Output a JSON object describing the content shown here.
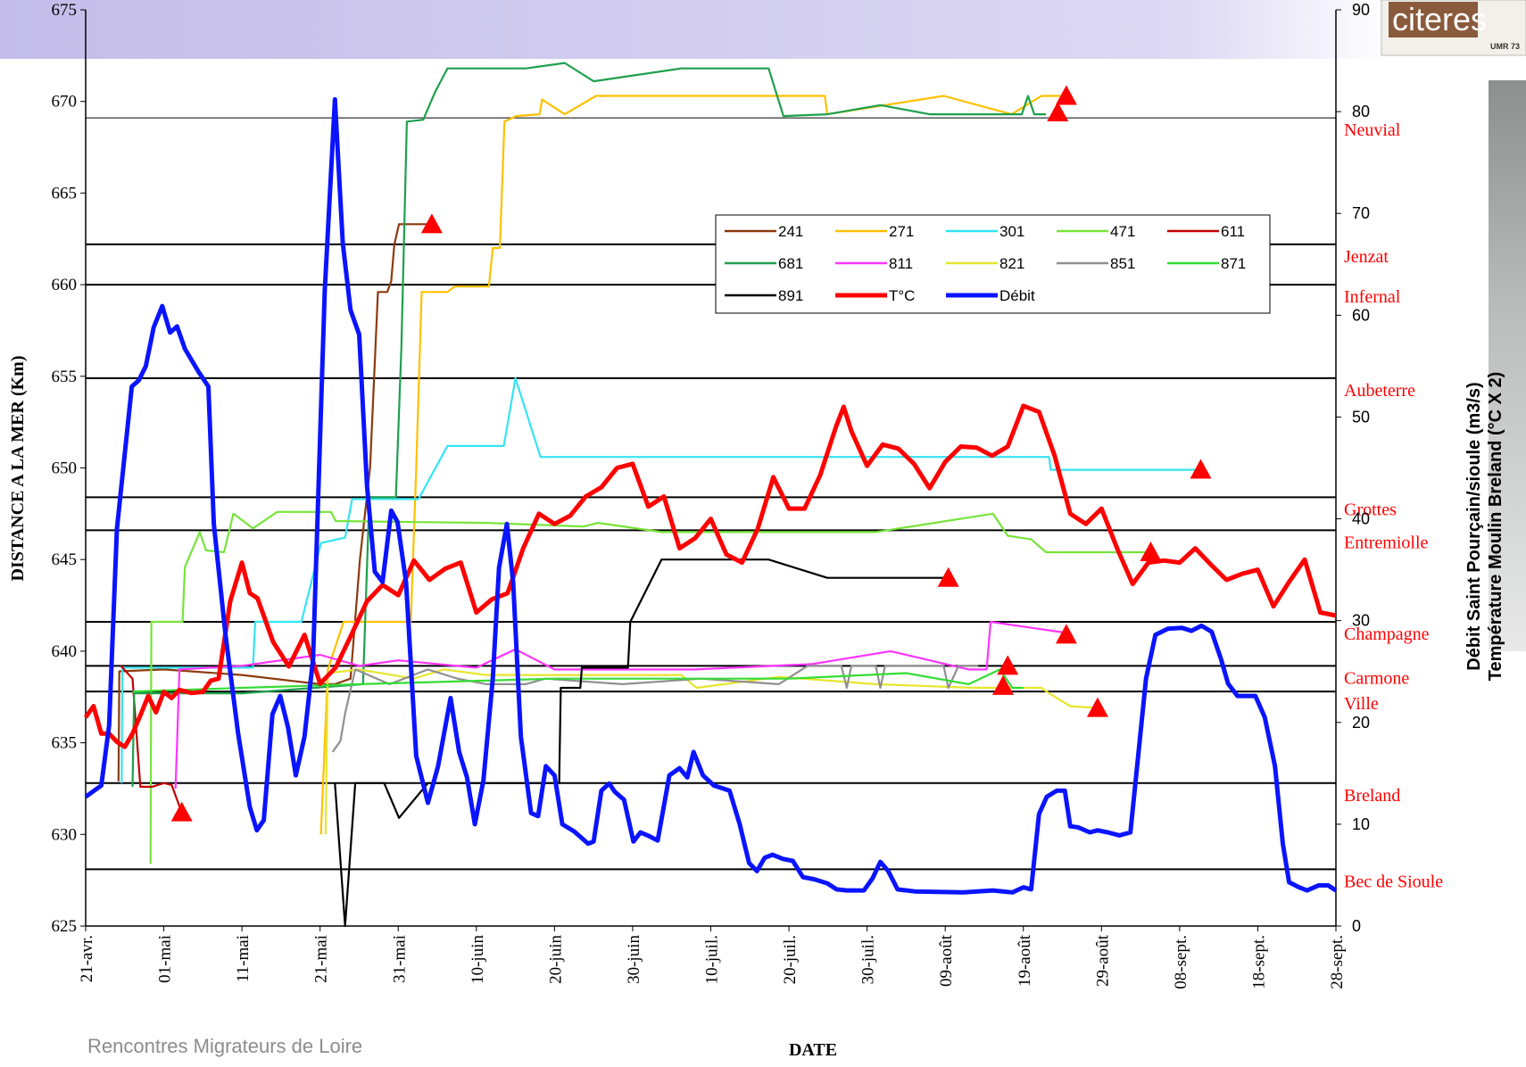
{
  "header": {
    "footer": "Rencontres Migrateurs de Loire",
    "logo": "citeres",
    "logo_sub": "UMR 73"
  },
  "chart_data": {
    "type": "line",
    "x_label": "DATE",
    "y_label": "DISTANCE A LA MER (Km)",
    "y2_label": [
      "Débit Saint Pourçain/sioule (m3/s)",
      "Température Moulin Breland (°C X 2)"
    ],
    "xlim": [
      0,
      160
    ],
    "xticks": [
      {
        "value": 0,
        "label": "21-avr."
      },
      {
        "value": 10,
        "label": "01-mai"
      },
      {
        "value": 20,
        "label": "11-mai"
      },
      {
        "value": 30,
        "label": "21-mai"
      },
      {
        "value": 40,
        "label": "31-mai"
      },
      {
        "value": 50,
        "label": "10-juin"
      },
      {
        "value": 60,
        "label": "20-juin"
      },
      {
        "value": 70,
        "label": "30-juin"
      },
      {
        "value": 80,
        "label": "10-juil."
      },
      {
        "value": 90,
        "label": "20-juil."
      },
      {
        "value": 100,
        "label": "30-juil."
      },
      {
        "value": 110,
        "label": "09-août"
      },
      {
        "value": 120,
        "label": "19-août"
      },
      {
        "value": 130,
        "label": "29-août"
      },
      {
        "value": 140,
        "label": "08-sept."
      },
      {
        "value": 150,
        "label": "18-sept."
      },
      {
        "value": 160,
        "label": "28-sept."
      }
    ],
    "ylim": [
      625,
      675
    ],
    "yticks": [
      625,
      630,
      635,
      640,
      645,
      650,
      655,
      660,
      665,
      670,
      675
    ],
    "y2lim": [
      0,
      90
    ],
    "y2ticks": [
      0,
      10,
      20,
      30,
      40,
      50,
      60,
      70,
      80,
      90
    ],
    "reference_lines": [
      {
        "label": "Neuvial",
        "value": 669.1
      },
      {
        "label": "Jenzat",
        "value": 662.2
      },
      {
        "label": "Infernal",
        "value": 660
      },
      {
        "label": "Aubeterre",
        "value": 654.9
      },
      {
        "label": "Grottes",
        "value": 648.4
      },
      {
        "label": "Entremiolle",
        "value": 646.6
      },
      {
        "label": "Champagne",
        "value": 641.6
      },
      {
        "label": "Carmone",
        "value": 639.2
      },
      {
        "label": "Ville",
        "value": 637.8
      },
      {
        "label": "Breland",
        "value": 632.8
      },
      {
        "label": "Bec de Sioule",
        "value": 628.1
      }
    ],
    "series": [
      {
        "name": "241",
        "color": "#8b3a0e",
        "x": [
          4.2,
          4.3,
          10,
          20,
          30,
          31.9,
          33.9,
          35.1,
          36.4,
          37.4,
          38.6,
          39.1,
          39.5,
          40.1,
          44.3
        ],
        "values": [
          632.9,
          638.9,
          639,
          638.7,
          638.2,
          638.2,
          638.5,
          645,
          650,
          659.6,
          659.6,
          660.2,
          662.2,
          663.3,
          663.3
        ]
      },
      {
        "name": "271",
        "color": "#ffc000",
        "x": [
          30.1,
          31,
          33,
          41.6,
          42.3,
          43,
          46.3,
          47.2,
          51.6,
          52.1,
          53,
          53.6,
          55.1,
          58.1,
          58.4,
          61.3,
          65.3,
          94.6,
          94.9,
          109.8,
          118.5,
          122.3,
          124.8
        ],
        "values": [
          630,
          639,
          641.6,
          641.6,
          650,
          659.6,
          659.6,
          659.9,
          659.9,
          662,
          662,
          668.9,
          669.2,
          669.3,
          670.1,
          669.3,
          670.3,
          670.3,
          669.3,
          670.3,
          669.3,
          670.3,
          670.3
        ]
      },
      {
        "name": "301",
        "color": "#33e5f2",
        "x": [
          4.6,
          4.7,
          21.4,
          21.7,
          27.6,
          28.9,
          30.1,
          33.2,
          34.1,
          42.6,
          46.3,
          53.5,
          55,
          58.2,
          123.3,
          123.5,
          142.7
        ],
        "values": [
          632.8,
          639.1,
          639.1,
          641.6,
          641.6,
          643.8,
          645.9,
          646.2,
          648.3,
          648.3,
          651.2,
          651.2,
          654.9,
          650.6,
          650.6,
          649.9,
          649.9
        ]
      },
      {
        "name": "471",
        "color": "#77e43a",
        "x": [
          8.3,
          8.4,
          12.4,
          12.7,
          13.7,
          14.6,
          15.4,
          17.7,
          18.9,
          21.4,
          24.5,
          31.4,
          32,
          51.3,
          63.7,
          65.6,
          73.7,
          101.1,
          116.1,
          118,
          121,
          122.9,
          136.3
        ],
        "values": [
          628.4,
          641.6,
          641.6,
          644.6,
          645.6,
          646.5,
          645.5,
          645.4,
          647.5,
          646.7,
          647.6,
          647.6,
          647.1,
          647,
          646.8,
          647,
          646.5,
          646.5,
          647.5,
          646.3,
          646.1,
          645.4,
          645.4
        ]
      },
      {
        "name": "611",
        "color": "#c00000",
        "x": [
          4.5,
          6,
          7,
          8.5,
          10,
          11,
          12.3
        ],
        "values": [
          639.2,
          638.5,
          632.6,
          632.6,
          632.8,
          632.7,
          631.2
        ]
      },
      {
        "name": "681",
        "color": "#1fa04e",
        "x": [
          6,
          6.2,
          20,
          35.5,
          36.3,
          39.7,
          40.4,
          41.1,
          43.2,
          44.7,
          46.3,
          56.3,
          61.3,
          65,
          76.2,
          87.4,
          89.3,
          94.9,
          101.7,
          108,
          119.8,
          120.6,
          121.4,
          122.9
        ],
        "values": [
          632.6,
          637.7,
          637.7,
          638.2,
          648.4,
          648.4,
          656.6,
          668.9,
          669,
          670.5,
          671.8,
          671.8,
          672.1,
          671.1,
          671.8,
          671.8,
          669.2,
          669.3,
          669.8,
          669.3,
          669.3,
          670.3,
          669.3,
          669.3
        ]
      },
      {
        "name": "811",
        "color": "#ff33ff",
        "x": [
          11.5,
          12,
          20,
          30,
          35,
          40,
          50,
          55,
          60,
          78,
          93,
          103,
          113,
          115.3,
          115.8,
          125.5
        ],
        "values": [
          632.5,
          639,
          639.2,
          639.8,
          639.2,
          639.5,
          639.1,
          640.1,
          639,
          639,
          639.3,
          640,
          639,
          639,
          641.6,
          641
        ]
      },
      {
        "name": "821",
        "color": "#e6e62e",
        "x": [
          30.7,
          31,
          35,
          42,
          45.8,
          51.3,
          76.2,
          78.2,
          88.7,
          101.1,
          113.6,
          122.3,
          123.3,
          126,
          129.5
        ],
        "values": [
          630,
          638.8,
          639,
          638.5,
          639,
          638.7,
          638.7,
          638,
          638.6,
          638.2,
          638,
          638,
          637.7,
          637,
          636.9
        ]
      },
      {
        "name": "851",
        "color": "#909090",
        "x": [
          31.6,
          32.6,
          33.2,
          34.5,
          38.9,
          43.8,
          47.6,
          51.3,
          56.3,
          58.8,
          68.7,
          78.7,
          88.7,
          92.4,
          96.7,
          97.4,
          98,
          101.1,
          101.7,
          102.3,
          109.8,
          110.4,
          111.7,
          114.2
        ],
        "values": [
          634.5,
          635.1,
          636.6,
          639,
          638.2,
          639,
          638.5,
          638.2,
          638.2,
          638.5,
          638.2,
          638.5,
          638.2,
          639.2,
          639.2,
          638,
          639.2,
          639.2,
          638,
          639.2,
          639.2,
          638,
          639.2,
          639.2
        ]
      },
      {
        "name": "871",
        "color": "#33dd33",
        "x": [
          6,
          20,
          35,
          60,
          90,
          105,
          113,
          117,
          118.6,
          120
        ],
        "values": [
          637.8,
          638,
          638.2,
          638.5,
          638.5,
          638.8,
          638.2,
          639,
          638,
          638
        ]
      },
      {
        "name": "891",
        "color": "#000000",
        "x": [
          31.9,
          33.2,
          34.5,
          38.2,
          40.1,
          43.8,
          60.6,
          60.8,
          63.3,
          63.5,
          69.4,
          69.7,
          73.7,
          87.4,
          94.9,
          109.8
        ],
        "values": [
          632.8,
          625,
          632.8,
          632.8,
          630.9,
          632.8,
          632.8,
          638,
          638,
          639.1,
          639.1,
          641.6,
          645,
          645,
          644,
          644
        ]
      },
      {
        "name": "T°C",
        "color": "#ff0000",
        "axis": "y2",
        "x": [
          0,
          1,
          2,
          3,
          4,
          5,
          6,
          7,
          8,
          9,
          10,
          11,
          12,
          13.5,
          15,
          16,
          17,
          18.5,
          20,
          21,
          22,
          24,
          26,
          28,
          30,
          32,
          34,
          36,
          38,
          40,
          42,
          44,
          46,
          48,
          50,
          52,
          54,
          56,
          58,
          60,
          62,
          64,
          66,
          68,
          70,
          72,
          74,
          76,
          78,
          80,
          82,
          84,
          86,
          88,
          90,
          92,
          94,
          96,
          97,
          98,
          100,
          102,
          104,
          106,
          108,
          110,
          112,
          114,
          116,
          118,
          120,
          122,
          124,
          126,
          128,
          130,
          132,
          134,
          136,
          138,
          140,
          142,
          144,
          146,
          148,
          150,
          152,
          154,
          156,
          158,
          160
        ],
        "values": [
          20.5,
          21.6,
          18.9,
          18.9,
          18.1,
          17.6,
          18.9,
          20.7,
          22.6,
          21,
          23,
          22.4,
          23.2,
          22.9,
          23,
          24.1,
          24.3,
          31.9,
          35.7,
          32.7,
          32.2,
          27.9,
          25.5,
          28.6,
          23.8,
          25.4,
          28.6,
          31.9,
          33.5,
          32.5,
          35.9,
          34,
          35.1,
          35.7,
          30.8,
          32.1,
          32.7,
          37.1,
          40.5,
          39.5,
          40.3,
          42.2,
          43.1,
          45,
          45.4,
          41.2,
          42.2,
          37.1,
          38.1,
          40,
          36.5,
          35.7,
          39,
          44.1,
          41,
          41,
          44.3,
          49,
          51,
          48.6,
          45.2,
          47.3,
          46.9,
          45.4,
          43,
          45.6,
          47.1,
          47,
          46.2,
          47.1,
          51.1,
          50.5,
          46.2,
          40.5,
          39.5,
          41,
          37.1,
          33.6,
          35.7,
          35.9,
          35.7,
          37.1,
          35.5,
          34,
          34.6,
          35,
          31.4,
          33.8,
          36,
          30.8,
          30.5
        ]
      },
      {
        "name": "Débit",
        "color": "#0a14ff",
        "axis": "y2",
        "x": [
          0,
          2,
          3,
          4,
          5.9,
          6.8,
          7.7,
          8.7,
          9.8,
          10.8,
          11.7,
          12.7,
          14.4,
          15.7,
          16.4,
          17.9,
          19.5,
          21,
          21.9,
          22.8,
          23.9,
          24.9,
          25.9,
          26.9,
          28,
          29.1,
          30.6,
          31.9,
          32.9,
          33.9,
          35,
          36,
          37,
          38,
          39.1,
          39.9,
          41,
          42.3,
          43.8,
          45.1,
          46.7,
          47.8,
          48.8,
          49.8,
          50.9,
          52.1,
          52.9,
          53.9,
          54.7,
          55.7,
          57,
          57.9,
          58.9,
          60,
          61,
          62.5,
          64.3,
          65,
          66,
          67,
          67.7,
          68.9,
          70.1,
          71,
          72.2,
          73.2,
          74.7,
          76,
          77,
          77.8,
          79,
          80.4,
          81.2,
          82.4,
          83.7,
          84.9,
          85.9,
          86.9,
          87.9,
          89.2,
          90.5,
          91.8,
          93.2,
          94.9,
          96.1,
          97.4,
          99.6,
          100.7,
          101.7,
          102.7,
          103.9,
          106.1,
          112.3,
          116.1,
          118.6,
          120,
          121,
          122,
          123,
          124.3,
          125.3,
          126,
          127,
          128.5,
          129.5,
          130.8,
          132.3,
          133.7,
          135.7,
          136.9,
          138.5,
          140.3,
          141.5,
          142.8,
          144.1,
          145.3,
          146.2,
          147.4,
          149.7,
          150.9,
          152.2,
          153.2,
          154,
          155.3,
          156.3,
          157.8,
          159,
          160
        ],
        "values": [
          12.7,
          13.8,
          19.7,
          39,
          53,
          53.6,
          55,
          58.8,
          60.9,
          58.3,
          58.9,
          56.7,
          54.5,
          53,
          39.5,
          28.6,
          19,
          11.7,
          9.4,
          10.4,
          20.8,
          22.6,
          19.5,
          14.8,
          18.6,
          26.2,
          62.4,
          81.2,
          67.1,
          60.5,
          58.1,
          43.3,
          34.8,
          33.8,
          40.8,
          39.7,
          33.8,
          16.7,
          12.1,
          15.7,
          22.4,
          17.1,
          14.6,
          10,
          14.3,
          24.3,
          35.2,
          39.5,
          33.8,
          18.6,
          11.1,
          10.8,
          15.7,
          14.8,
          10,
          9.3,
          8.1,
          8.3,
          13.3,
          14,
          13.2,
          12.4,
          8.3,
          9.2,
          8.8,
          8.4,
          14.8,
          15.5,
          14.6,
          17.1,
          14.8,
          13.8,
          13.6,
          13.3,
          10,
          6.2,
          5.4,
          6.7,
          7,
          6.6,
          6.4,
          4.8,
          4.6,
          4.2,
          3.6,
          3.5,
          3.5,
          4.7,
          6.3,
          5.4,
          3.6,
          3.4,
          3.3,
          3.5,
          3.3,
          3.8,
          3.6,
          11,
          12.7,
          13.3,
          13.3,
          9.8,
          9.7,
          9.2,
          9.4,
          9.2,
          8.9,
          9.2,
          24.3,
          28.6,
          29.2,
          29.3,
          29,
          29.5,
          28.9,
          26.2,
          23.8,
          22.6,
          22.6,
          20.5,
          15.7,
          8.1,
          4.3,
          3.8,
          3.5,
          4,
          4,
          3.5
        ]
      }
    ],
    "markers": {
      "color": "#ff0000",
      "x": [
        12.3,
        44.3,
        125.5,
        124.4,
        142.7,
        110.4,
        136.3,
        125.5,
        118,
        117.4,
        129.5
      ],
      "y": [
        631.2,
        663.3,
        670.3,
        669.4,
        649.9,
        644,
        645.4,
        640.9,
        639.2,
        638.1,
        636.9
      ]
    }
  }
}
